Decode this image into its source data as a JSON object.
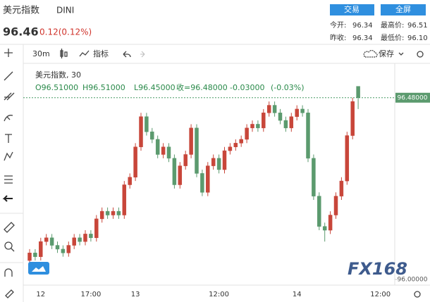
{
  "header": {
    "title": "美元指数",
    "symbol": "DINI",
    "price": "96.46",
    "change": "0.12(0.12%)",
    "buttons": [
      "交易",
      "全屏"
    ],
    "stats": [
      {
        "label": "今开:",
        "value": "96.34"
      },
      {
        "label": "最高价:",
        "value": "96.51"
      },
      {
        "label": "昨收:",
        "value": "96.34"
      },
      {
        "label": "最低价:",
        "value": "96.10"
      }
    ]
  },
  "toolbar": {
    "interval": "30m",
    "indicators": "指标",
    "save": "保存"
  },
  "watermark": "FX168",
  "chart_data": {
    "type": "candlestick",
    "title": "美元指数, 30",
    "ohlc_legend": [
      "O96.51000",
      "H96.51000",
      "L96.45000",
      "收=96.48000",
      "-0.03000",
      "(-0.03%)"
    ],
    "categories": [
      null,
      null,
      "12",
      null,
      null,
      null,
      null,
      null,
      null,
      null,
      null,
      "17:00",
      null,
      null,
      null,
      null,
      null,
      null,
      null,
      "13",
      null,
      null,
      null,
      null,
      null,
      null,
      null,
      null,
      null,
      null,
      null,
      null,
      null,
      null,
      "12:00",
      null,
      null,
      null,
      null,
      null,
      null,
      null,
      null,
      null,
      null,
      null,
      null,
      null,
      "14",
      null,
      null,
      null,
      null,
      null,
      null,
      null,
      null,
      null,
      null,
      null,
      null,
      null,
      null,
      "12:00"
    ],
    "open": [
      96.05,
      96.07,
      96.06,
      96.1,
      96.11,
      96.09,
      96.08,
      96.07,
      96.09,
      96.11,
      96.1,
      96.12,
      96.11,
      96.16,
      96.18,
      96.17,
      96.18,
      96.17,
      96.25,
      96.27,
      96.35,
      96.43,
      96.39,
      96.37,
      96.33,
      96.35,
      96.32,
      96.25,
      96.3,
      96.33,
      96.4,
      96.28,
      96.23,
      96.3,
      96.32,
      96.29,
      96.34,
      96.35,
      96.36,
      96.37,
      96.4,
      96.41,
      96.4,
      96.44,
      96.46,
      96.44,
      96.42,
      96.4,
      96.43,
      96.45,
      96.44,
      96.32,
      96.22,
      96.14,
      96.13,
      96.17,
      96.22,
      96.26,
      96.38,
      96.51,
      null,
      null,
      null,
      null
    ],
    "high": [
      96.08,
      96.08,
      96.11,
      96.12,
      96.12,
      96.1,
      96.09,
      96.1,
      96.12,
      96.12,
      96.13,
      96.13,
      96.17,
      96.19,
      96.19,
      96.19,
      96.19,
      96.26,
      96.28,
      96.36,
      96.44,
      96.44,
      96.4,
      96.38,
      96.36,
      96.36,
      96.33,
      96.31,
      96.34,
      96.41,
      96.41,
      96.29,
      96.31,
      96.33,
      96.33,
      96.35,
      96.36,
      96.37,
      96.38,
      96.41,
      96.42,
      96.42,
      96.45,
      96.47,
      96.47,
      96.45,
      96.43,
      96.44,
      96.46,
      96.46,
      96.45,
      96.33,
      96.23,
      96.15,
      96.18,
      96.23,
      96.27,
      96.39,
      96.48,
      96.51,
      null,
      null,
      null,
      null
    ],
    "low": [
      96.04,
      96.05,
      96.05,
      96.09,
      96.08,
      96.07,
      96.06,
      96.06,
      96.08,
      96.09,
      96.09,
      96.1,
      96.1,
      96.15,
      96.16,
      96.16,
      96.16,
      96.16,
      96.24,
      96.26,
      96.34,
      96.38,
      96.36,
      96.32,
      96.32,
      96.31,
      96.24,
      96.24,
      96.29,
      96.32,
      96.27,
      96.22,
      96.22,
      96.29,
      96.28,
      96.28,
      96.33,
      96.34,
      96.35,
      96.36,
      96.39,
      96.39,
      96.39,
      96.43,
      96.43,
      96.41,
      96.39,
      96.39,
      96.42,
      96.43,
      96.31,
      96.21,
      96.13,
      96.1,
      96.12,
      96.16,
      96.21,
      96.25,
      96.37,
      96.45,
      null,
      null,
      null,
      null
    ],
    "close": [
      96.07,
      96.06,
      96.1,
      96.11,
      96.09,
      96.08,
      96.07,
      96.09,
      96.11,
      96.1,
      96.12,
      96.11,
      96.16,
      96.18,
      96.17,
      96.18,
      96.17,
      96.25,
      96.27,
      96.35,
      96.43,
      96.39,
      96.37,
      96.33,
      96.35,
      96.32,
      96.25,
      96.3,
      96.33,
      96.4,
      96.28,
      96.23,
      96.3,
      96.32,
      96.29,
      96.34,
      96.35,
      96.36,
      96.37,
      96.4,
      96.41,
      96.4,
      96.44,
      96.46,
      96.44,
      96.42,
      96.4,
      96.43,
      96.45,
      96.44,
      96.32,
      96.22,
      96.14,
      96.13,
      96.17,
      96.22,
      96.26,
      96.38,
      96.47,
      96.48,
      null,
      null,
      null,
      null
    ],
    "up_color": "#c8463a",
    "down_color": "#5b9a6e",
    "ylim": [
      95.985,
      96.554
    ],
    "yticks": [
      {
        "value": 96.48,
        "label": "96.48000"
      },
      {
        "value": 96,
        "label": "96.00000"
      }
    ],
    "grid": false
  }
}
